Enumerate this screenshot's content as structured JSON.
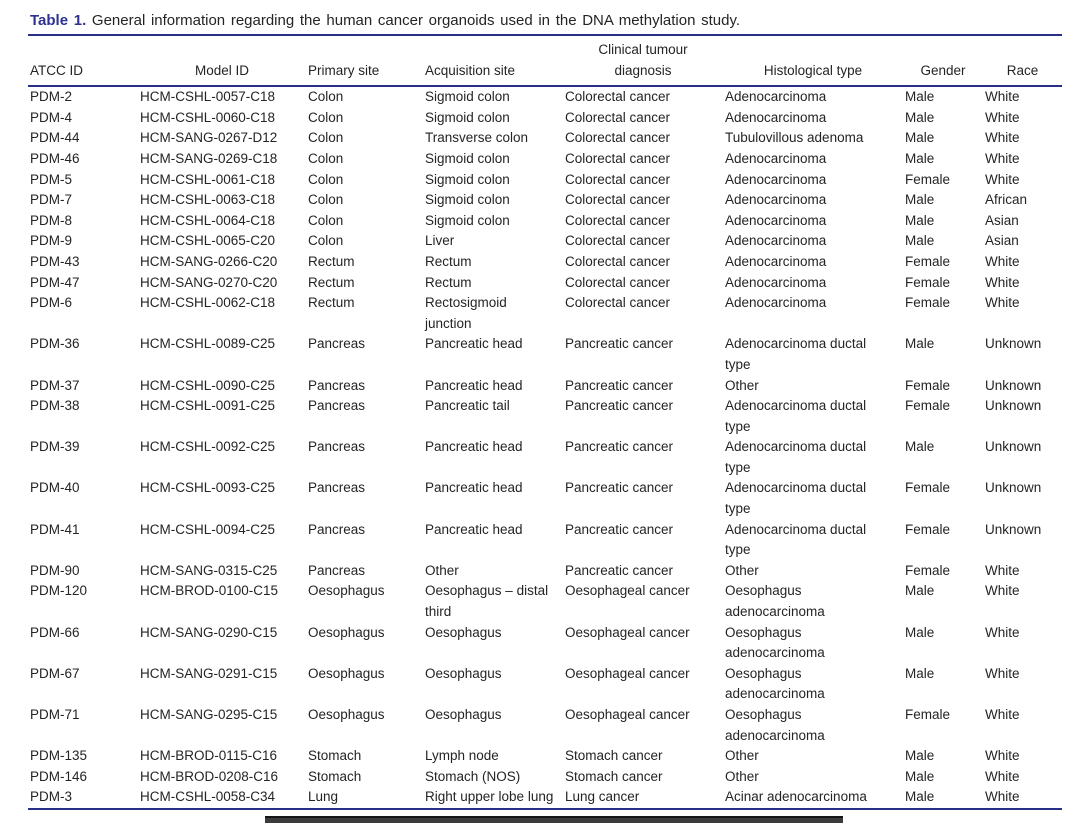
{
  "page": {
    "caption_label": "Table 1.",
    "caption_text": " General information regarding the human cancer organoids used in the DNA methylation study."
  },
  "table": {
    "headers": [
      "ATCC ID",
      "Model ID",
      "Primary site",
      "Acquisition site",
      "Clinical tumour\ndiagnosis",
      "Histological type",
      "Gender",
      "Race"
    ],
    "rows": [
      [
        "PDM-2",
        "HCM-CSHL-0057-C18",
        "Colon",
        "Sigmoid colon",
        "Colorectal cancer",
        "Adenocarcinoma",
        "Male",
        "White"
      ],
      [
        "PDM-4",
        "HCM-CSHL-0060-C18",
        "Colon",
        "Sigmoid colon",
        "Colorectal cancer",
        "Adenocarcinoma",
        "Male",
        "White"
      ],
      [
        "PDM-44",
        "HCM-SANG-0267-D12",
        "Colon",
        "Transverse colon",
        "Colorectal cancer",
        "Tubulovillous adenoma",
        "Male",
        "White"
      ],
      [
        "PDM-46",
        "HCM-SANG-0269-C18",
        "Colon",
        "Sigmoid colon",
        "Colorectal cancer",
        "Adenocarcinoma",
        "Male",
        "White"
      ],
      [
        "PDM-5",
        "HCM-CSHL-0061-C18",
        "Colon",
        "Sigmoid colon",
        "Colorectal cancer",
        "Adenocarcinoma",
        "Female",
        "White"
      ],
      [
        "PDM-7",
        "HCM-CSHL-0063-C18",
        "Colon",
        "Sigmoid colon",
        "Colorectal cancer",
        "Adenocarcinoma",
        "Male",
        "African"
      ],
      [
        "PDM-8",
        "HCM-CSHL-0064-C18",
        "Colon",
        "Sigmoid colon",
        "Colorectal cancer",
        "Adenocarcinoma",
        "Male",
        "Asian"
      ],
      [
        "PDM-9",
        "HCM-CSHL-0065-C20",
        "Colon",
        "Liver",
        "Colorectal cancer",
        "Adenocarcinoma",
        "Male",
        "Asian"
      ],
      [
        "PDM-43",
        "HCM-SANG-0266-C20",
        "Rectum",
        "Rectum",
        "Colorectal cancer",
        "Adenocarcinoma",
        "Female",
        "White"
      ],
      [
        "PDM-47",
        "HCM-SANG-0270-C20",
        "Rectum",
        "Rectum",
        "Colorectal cancer",
        "Adenocarcinoma",
        "Female",
        "White"
      ],
      [
        "PDM-6",
        "HCM-CSHL-0062-C18",
        "Rectum",
        "Rectosigmoid\njunction",
        "Colorectal cancer",
        "Adenocarcinoma",
        "Female",
        "White"
      ],
      [
        "PDM-36",
        "HCM-CSHL-0089-C25",
        "Pancreas",
        "Pancreatic head",
        "Pancreatic cancer",
        "Adenocarcinoma ductal\ntype",
        "Male",
        "Unknown"
      ],
      [
        "PDM-37",
        "HCM-CSHL-0090-C25",
        "Pancreas",
        "Pancreatic head",
        "Pancreatic cancer",
        "Other",
        "Female",
        "Unknown"
      ],
      [
        "PDM-38",
        "HCM-CSHL-0091-C25",
        "Pancreas",
        "Pancreatic tail",
        "Pancreatic cancer",
        "Adenocarcinoma ductal\ntype",
        "Female",
        "Unknown"
      ],
      [
        "PDM-39",
        "HCM-CSHL-0092-C25",
        "Pancreas",
        "Pancreatic head",
        "Pancreatic cancer",
        "Adenocarcinoma ductal\ntype",
        "Male",
        "Unknown"
      ],
      [
        "PDM-40",
        "HCM-CSHL-0093-C25",
        "Pancreas",
        "Pancreatic head",
        "Pancreatic cancer",
        "Adenocarcinoma ductal\ntype",
        "Female",
        "Unknown"
      ],
      [
        "PDM-41",
        "HCM-CSHL-0094-C25",
        "Pancreas",
        "Pancreatic head",
        "Pancreatic cancer",
        "Adenocarcinoma ductal\ntype",
        "Female",
        "Unknown"
      ],
      [
        "PDM-90",
        "HCM-SANG-0315-C25",
        "Pancreas",
        "Other",
        "Pancreatic cancer",
        "Other",
        "Female",
        "White"
      ],
      [
        "PDM-120",
        "HCM-BROD-0100-C15",
        "Oesophagus",
        "Oesophagus – distal\nthird",
        "Oesophageal cancer",
        "Oesophagus\nadenocarcinoma",
        "Male",
        "White"
      ],
      [
        "PDM-66",
        "HCM-SANG-0290-C15",
        "Oesophagus",
        "Oesophagus",
        "Oesophageal cancer",
        "Oesophagus\nadenocarcinoma",
        "Male",
        "White"
      ],
      [
        "PDM-67",
        "HCM-SANG-0291-C15",
        "Oesophagus",
        "Oesophagus",
        "Oesophageal cancer",
        "Oesophagus\nadenocarcinoma",
        "Male",
        "White"
      ],
      [
        "PDM-71",
        "HCM-SANG-0295-C15",
        "Oesophagus",
        "Oesophagus",
        "Oesophageal cancer",
        "Oesophagus\nadenocarcinoma",
        "Female",
        "White"
      ],
      [
        "PDM-135",
        "HCM-BROD-0115-C16",
        "Stomach",
        "Lymph node",
        "Stomach cancer",
        "Other",
        "Male",
        "White"
      ],
      [
        "PDM-146",
        "HCM-BROD-0208-C16",
        "Stomach",
        "Stomach (NOS)",
        "Stomach cancer",
        "Other",
        "Male",
        "White"
      ],
      [
        "PDM-3",
        "HCM-CSHL-0058-C34",
        "Lung",
        "Right upper lobe lung",
        "Lung cancer",
        "Acinar adenocarcinoma",
        "Male",
        "White"
      ]
    ]
  },
  "colors": {
    "rule": "#2a2f86",
    "caption_label": "#2e3192",
    "text": "#262324",
    "cropped_bar": "#3b3b3b"
  }
}
